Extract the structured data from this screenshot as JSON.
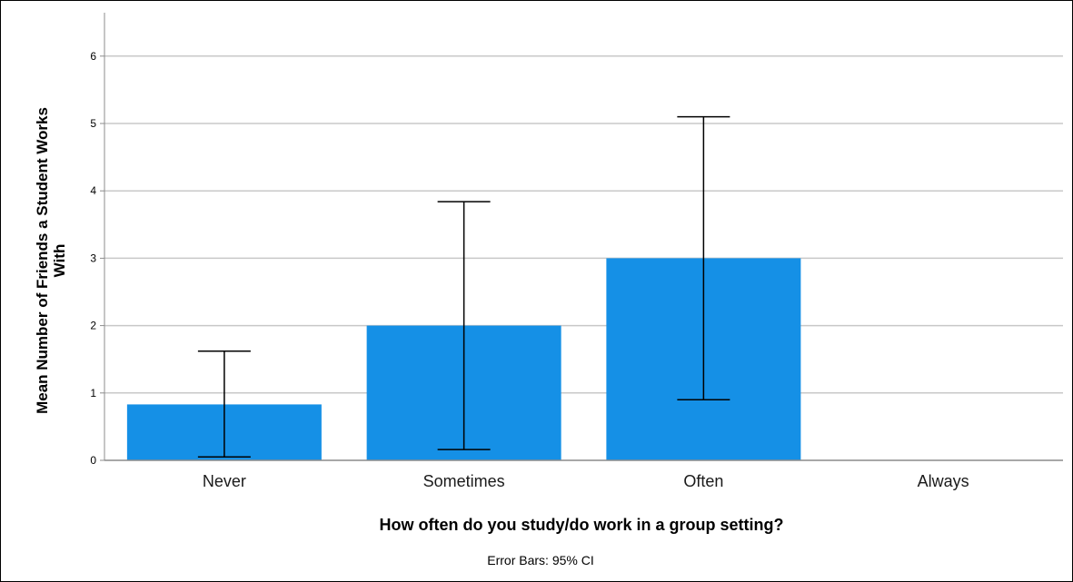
{
  "chart_data": {
    "type": "bar",
    "categories": [
      "Never",
      "Sometimes",
      "Often",
      "Always"
    ],
    "values": [
      0.83,
      2.0,
      3.0,
      null
    ],
    "error_bars": {
      "low": [
        0.05,
        0.16,
        0.9,
        null
      ],
      "high": [
        1.62,
        3.84,
        5.1,
        null
      ]
    },
    "xlabel": "How often do you study/do work in a group setting?",
    "ylabel_lines": [
      "Mean Number of Friends a Student Works",
      "With"
    ],
    "ylim": [
      0,
      6.6
    ],
    "yticks": [
      0,
      1,
      2,
      3,
      4,
      5,
      6
    ],
    "grid": true,
    "note": "Error Bars: 95% CI",
    "colors": {
      "bar": "#1590e6",
      "grid": "#c8c8c8",
      "axis": "#8c8c8c",
      "error_bar": "#000000"
    }
  }
}
